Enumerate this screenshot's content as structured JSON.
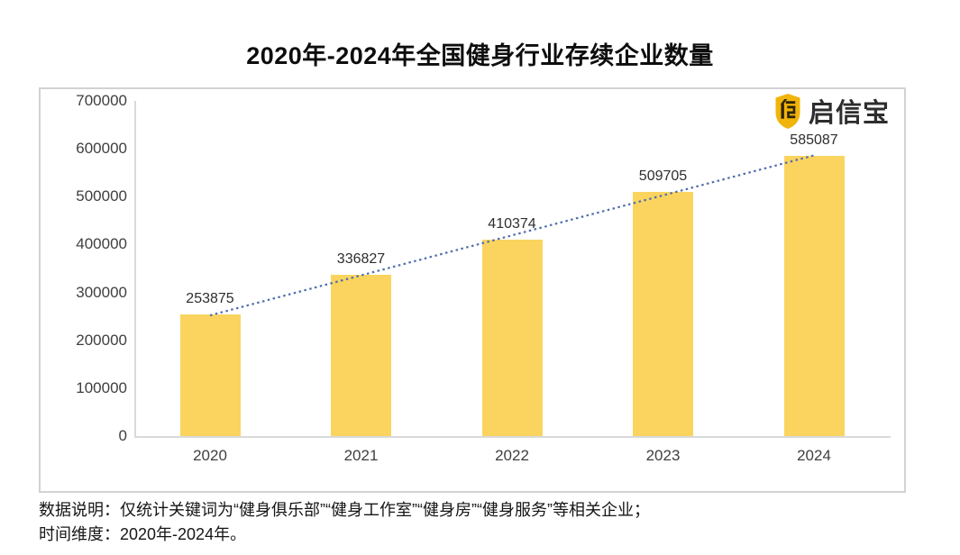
{
  "page": {
    "title": "2020年-2024年全国健身行业存续企业数量"
  },
  "logo": {
    "brand": "启信宝",
    "icon": "qixinbao-shield-icon",
    "shield_color": "#F1B40A",
    "glyph_color": "#2E2507"
  },
  "chart_data": {
    "type": "bar",
    "title": "2020年-2024年全国健身行业存续企业数量",
    "categories": [
      "2020",
      "2021",
      "2022",
      "2023",
      "2024"
    ],
    "values": [
      253875,
      336827,
      410374,
      509705,
      585087
    ],
    "xlabel": "",
    "ylabel": "",
    "ylim": [
      0,
      700000
    ],
    "yticks": [
      0,
      100000,
      200000,
      300000,
      400000,
      500000,
      600000,
      700000
    ],
    "grid": false,
    "legend": "none",
    "bar_color": "#FAD45F",
    "trendline": {
      "type": "linear",
      "style": "dotted",
      "color": "#4F6DAD"
    }
  },
  "footer": {
    "line1": "数据说明：仅统计关键词为“健身俱乐部”“健身工作室”“健身房”“健身服务”等相关企业；",
    "line2": "时间维度：2020年-2024年。"
  }
}
